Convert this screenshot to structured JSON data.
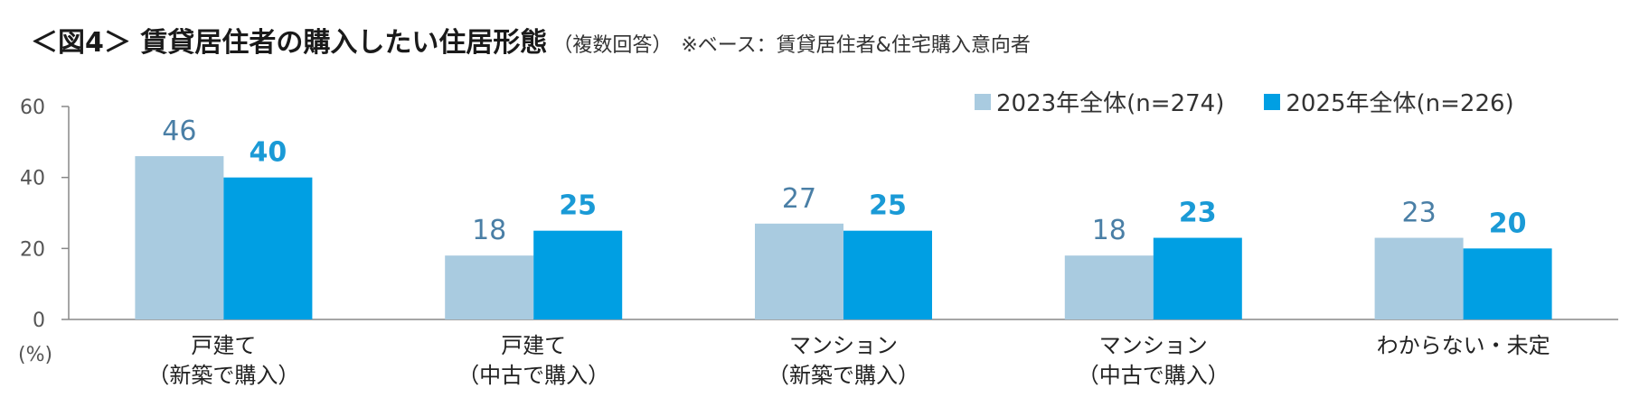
{
  "title": {
    "main": "＜図4＞ 賃貸居住者の購入したい住居形態",
    "sub": "（複数回答）",
    "note": "※ベース：賃貸居住者&住宅購入意向者"
  },
  "chart_data": {
    "type": "bar",
    "categories": [
      [
        "戸建て",
        "（新築で購入）"
      ],
      [
        "戸建て",
        "（中古で購入）"
      ],
      [
        "マンション",
        "（新築で購入）"
      ],
      [
        "マンション",
        "（中古で購入）"
      ],
      [
        "わからない・未定",
        ""
      ]
    ],
    "series": [
      {
        "name": "2023年全体(n=274)",
        "values": [
          46,
          18,
          27,
          18,
          23
        ],
        "color": "#a9cbe0",
        "label_color": "#4a7fa6"
      },
      {
        "name": "2025年全体(n=226)",
        "values": [
          40,
          25,
          25,
          23,
          20
        ],
        "color": "#009fe3",
        "label_color": "#1a9ad6"
      }
    ],
    "ylim": [
      0,
      60
    ],
    "yticks": [
      0,
      20,
      40,
      60
    ],
    "yunit": "(%)",
    "legend_position": "top-right",
    "grid": false
  }
}
